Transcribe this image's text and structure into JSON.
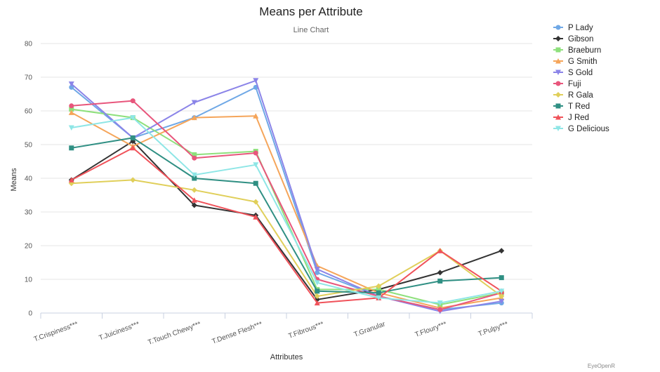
{
  "chart_data": {
    "type": "line",
    "title": "Means per Attribute",
    "subtitle": "Line Chart",
    "xlabel": "Attributes",
    "ylabel": "Means",
    "ylim": [
      0,
      80
    ],
    "yticks": [
      0,
      10,
      20,
      30,
      40,
      50,
      60,
      70,
      80
    ],
    "grid": "horizontal",
    "legend_position": "right",
    "credit": "EyeOpenR",
    "categories": [
      "T.Crispiness***",
      "T.Juiciness***",
      "T.Touch Chewy***",
      "T.Dense Flesh***",
      "T.Fibrous***",
      "T.Granular",
      "T.Floury***",
      "T.Pulpy***"
    ],
    "series": [
      {
        "name": "P Lady",
        "color": "#6fa8e6",
        "marker": "circle",
        "values": [
          67,
          52,
          58,
          67,
          12,
          5,
          1,
          3
        ]
      },
      {
        "name": "Gibson",
        "color": "#333333",
        "marker": "diamond",
        "values": [
          39.5,
          51,
          32,
          29,
          4,
          7,
          12,
          18.5
        ]
      },
      {
        "name": "Braeburn",
        "color": "#8ee07c",
        "marker": "square",
        "values": [
          60.5,
          58,
          47,
          48,
          7,
          7,
          2.5,
          6
        ]
      },
      {
        "name": "G Smith",
        "color": "#f5a55a",
        "marker": "triangle",
        "values": [
          59.5,
          49.5,
          58,
          58.5,
          14,
          6,
          1.5,
          4.5
        ]
      },
      {
        "name": "S Gold",
        "color": "#8b84e8",
        "marker": "triangle-down",
        "values": [
          68,
          52,
          62.5,
          69,
          13,
          5,
          0.5,
          3.5
        ]
      },
      {
        "name": "Fuji",
        "color": "#e8567c",
        "marker": "circle",
        "values": [
          61.5,
          63,
          46,
          47.5,
          10,
          5,
          1,
          6
        ]
      },
      {
        "name": "R Gala",
        "color": "#e0cf5a",
        "marker": "diamond",
        "values": [
          38.5,
          39.5,
          36.5,
          33,
          5,
          8,
          18.5,
          5
        ]
      },
      {
        "name": "T Red",
        "color": "#2f8f83",
        "marker": "square",
        "values": [
          49,
          52,
          40,
          38.5,
          6.5,
          6,
          9.5,
          10.5
        ]
      },
      {
        "name": "J Red",
        "color": "#f0525a",
        "marker": "triangle",
        "values": [
          39.5,
          49,
          33.5,
          28.5,
          3,
          4.5,
          18.5,
          6.5
        ]
      },
      {
        "name": "G Delicious",
        "color": "#8ee6e6",
        "marker": "triangle-down",
        "values": [
          55,
          58,
          41,
          44,
          9,
          4.5,
          3,
          6.5
        ]
      }
    ]
  }
}
